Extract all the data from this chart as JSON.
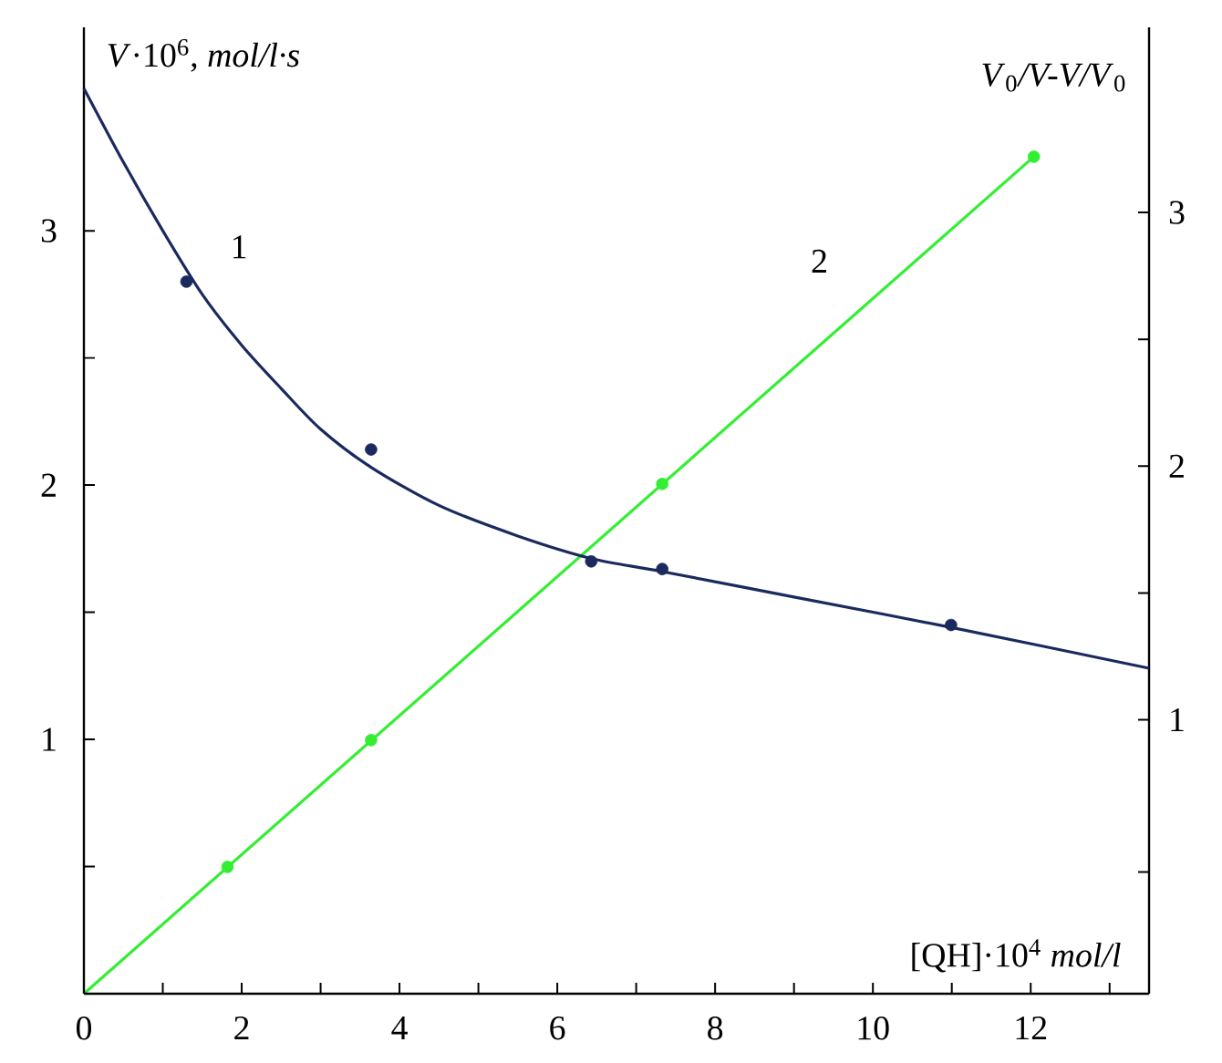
{
  "chart_data": {
    "type": "line",
    "xlabel": "[QH]·10$^{4}$ *mol/l*",
    "ylabel": "*V*·10$^{6}$, *mol/l·s*",
    "y2label": "*V*$_{0}$*/V-V/V*$_{0}$",
    "xlim": [
      0,
      13.5
    ],
    "ylim": [
      0,
      3.8
    ],
    "y2lim": [
      -0.08,
      3.73
    ],
    "xticks": [
      0,
      {
        "value": 1,
        "label": null
      },
      2,
      {
        "value": 3,
        "label": null
      },
      4,
      {
        "value": 5,
        "label": null
      },
      6,
      {
        "value": 7,
        "label": null
      },
      8,
      {
        "value": 9,
        "label": null
      },
      10,
      {
        "value": 11,
        "label": null
      },
      12,
      {
        "value": 13,
        "label": null
      }
    ],
    "yticks": [
      {
        "value": 0.5,
        "label": null
      },
      1,
      {
        "value": 1.5,
        "label": null
      },
      2,
      {
        "value": 2.5,
        "label": null
      },
      3
    ],
    "y2ticks": [
      {
        "value": 0.4,
        "label": null
      },
      1,
      {
        "value": 1.5,
        "label": null
      },
      2,
      {
        "value": 2.5,
        "label": null
      },
      3
    ],
    "series": [
      {
        "name": "1",
        "color": "#1a2a5e",
        "marker": "none",
        "x": [
          0,
          0.5,
          1,
          1.5,
          2,
          2.5,
          3,
          3.64,
          4.5,
          5.5,
          6.45,
          7.33,
          9,
          11,
          13.5
        ],
        "values": [
          3.56,
          3.27,
          3.0,
          2.75,
          2.55,
          2.38,
          2.22,
          2.07,
          1.92,
          1.8,
          1.71,
          1.66,
          1.56,
          1.44,
          1.28
        ]
      },
      {
        "type": "scatter",
        "color": "#1a2a5e",
        "marker": "circle",
        "x": [
          1.3,
          3.64,
          6.43,
          7.33,
          10.99
        ],
        "values": [
          2.8,
          2.14,
          1.7,
          1.67,
          1.45
        ]
      },
      {
        "name": "2",
        "color": "#33ee33",
        "marker": "none",
        "axis": "y2",
        "x": [
          0,
          12.04
        ],
        "values": [
          -0.08,
          3.22
        ]
      },
      {
        "type": "scatter",
        "color": "#33ee33",
        "marker": "circle",
        "axis": "y2",
        "x": [
          1.82,
          3.64,
          7.33,
          12.04
        ],
        "values": [
          0.42,
          0.92,
          1.93,
          3.22
        ]
      }
    ]
  }
}
